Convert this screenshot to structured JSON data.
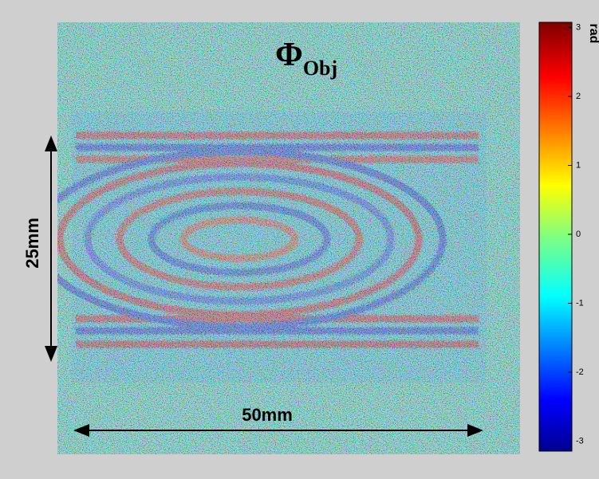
{
  "figure": {
    "title": "Φ",
    "title_subscript": "Obj",
    "vertical_scale": "25mm",
    "horizontal_scale": "50mm",
    "colorbar": {
      "unit": "rad",
      "ticks": [
        3,
        2,
        1,
        0,
        -1,
        -2,
        -3
      ]
    }
  }
}
